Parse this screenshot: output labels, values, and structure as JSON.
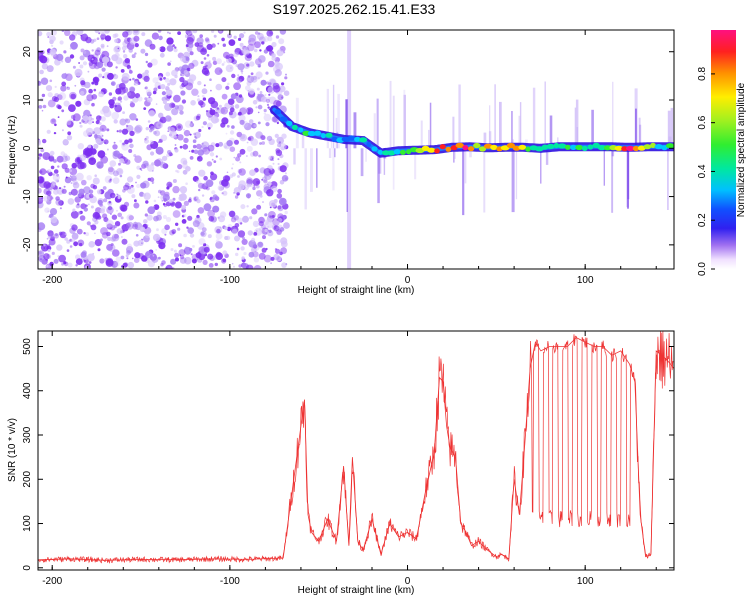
{
  "title": "S197.2025.262.15.41.E33",
  "chart_data": [
    {
      "type": "heatmap",
      "title": "",
      "xlabel": "Height of straight line (km)",
      "ylabel": "Frequency (Hz)",
      "xlim": [
        -208,
        150
      ],
      "ylim": [
        -25,
        24.5
      ],
      "xticks": [
        -200,
        -100,
        0,
        100
      ],
      "yticks": [
        -20,
        -10,
        0,
        10,
        20
      ],
      "noise_boundary_x": -68,
      "ridge": {
        "name": "dominant frequency ridge",
        "x": [
          -75,
          -65,
          -55,
          -45,
          -35,
          -25,
          -15,
          -5,
          5,
          15,
          25,
          35,
          45,
          55,
          65,
          75,
          85,
          95,
          105,
          115,
          125,
          135,
          145
        ],
        "y": [
          8,
          4.5,
          3.2,
          2.5,
          1.8,
          1.6,
          -1,
          -0.5,
          -0.4,
          -0.3,
          0.2,
          0.3,
          0.1,
          0.2,
          0.2,
          0,
          0.3,
          0.3,
          0.3,
          0.3,
          0.2,
          0.3,
          0.3
        ],
        "amplitude": [
          0.15,
          0.35,
          0.4,
          0.35,
          0.3,
          0.3,
          0.35,
          0.4,
          0.55,
          0.7,
          0.9,
          0.85,
          0.7,
          0.8,
          0.6,
          0.45,
          0.4,
          0.4,
          0.45,
          0.45,
          0.9,
          0.5,
          0.4
        ]
      },
      "colorbar": {
        "label": "Normalized spectral amplitude",
        "range": [
          0,
          0.98
        ],
        "ticks": [
          "0.0",
          "0.2",
          "0.4",
          "0.6",
          "0.8"
        ]
      }
    },
    {
      "type": "line",
      "title": "",
      "xlabel": "Height of straight line (km)",
      "ylabel": "SNR (10 * v/v)",
      "xlim": [
        -208,
        150
      ],
      "ylim": [
        -5,
        535
      ],
      "xticks": [
        -200,
        -100,
        0,
        100
      ],
      "yticks": [
        0,
        100,
        200,
        300,
        400,
        500
      ],
      "color": "#ee3333",
      "series": [
        {
          "name": "SNR",
          "x": [
            -208,
            -190,
            -170,
            -150,
            -130,
            -110,
            -90,
            -70,
            -58,
            -56,
            -54,
            -50,
            -45,
            -40,
            -36,
            -33,
            -31,
            -28,
            -25,
            -20,
            -15,
            -10,
            -5,
            0,
            5,
            10,
            15,
            18,
            20,
            22,
            24,
            27,
            30,
            33,
            36,
            40,
            45,
            50,
            53,
            57,
            60,
            63,
            66,
            69,
            72,
            75,
            80,
            85,
            90,
            95,
            100,
            105,
            110,
            115,
            120,
            125,
            128,
            131,
            134,
            137,
            140,
            143,
            146,
            150
          ],
          "y": [
            18,
            20,
            17,
            19,
            18,
            20,
            19,
            22,
            380,
            120,
            80,
            60,
            110,
            60,
            230,
            50,
            250,
            60,
            40,
            110,
            30,
            100,
            70,
            80,
            65,
            170,
            260,
            430,
            420,
            320,
            270,
            250,
            100,
            80,
            50,
            60,
            40,
            25,
            30,
            20,
            200,
            120,
            280,
            450,
            510,
            490,
            500,
            500,
            500,
            520,
            510,
            500,
            500,
            480,
            490,
            460,
            420,
            120,
            25,
            30,
            490,
            480,
            470,
            450
          ]
        }
      ]
    }
  ]
}
